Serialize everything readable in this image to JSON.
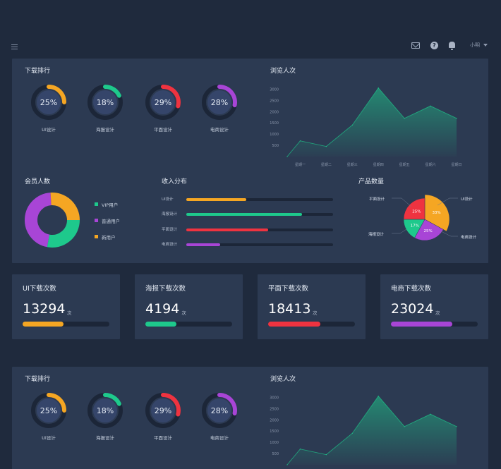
{
  "header": {
    "user_name": "小明"
  },
  "colors": {
    "yellow": "#f5a623",
    "green": "#1ec98c",
    "red": "#ef3340",
    "purple": "#a845d6",
    "track": "#1c2638"
  },
  "dashboard1": {
    "download_rank": {
      "title": "下载排行",
      "items": [
        {
          "label": "UI设计",
          "percent_text": "25%",
          "percent": 25,
          "color": "#f5a623"
        },
        {
          "label": "海报设计",
          "percent_text": "18%",
          "percent": 18,
          "color": "#1ec98c"
        },
        {
          "label": "平面设计",
          "percent_text": "29%",
          "percent": 29,
          "color": "#ef3340"
        },
        {
          "label": "电商设计",
          "percent_text": "28%",
          "percent": 28,
          "color": "#a845d6"
        }
      ]
    },
    "views": {
      "title": "浏览人次"
    },
    "members": {
      "title": "会员人数",
      "legend": [
        {
          "label": "VIP用户",
          "color": "#1ec98c"
        },
        {
          "label": "普通用户",
          "color": "#a845d6"
        },
        {
          "label": "新用户",
          "color": "#f5a623"
        }
      ]
    },
    "income": {
      "title": "收入分布",
      "rows": [
        {
          "label": "UI设计",
          "fraction": 0.41,
          "color": "#f5a623"
        },
        {
          "label": "海报设计",
          "fraction": 0.79,
          "color": "#1ec98c"
        },
        {
          "label": "平面设计",
          "fraction": 0.56,
          "color": "#ef3340"
        },
        {
          "label": "电商设计",
          "fraction": 0.23,
          "color": "#a845d6"
        }
      ]
    },
    "products": {
      "title": "产品数量",
      "labels": {
        "poster": "海报设计",
        "print": "平面设计",
        "ui": "UI设计",
        "ecommerce": "电商设计"
      }
    }
  },
  "stats": [
    {
      "title": "UI下载次数",
      "value": "13294",
      "unit": "次",
      "fraction": 0.47,
      "color": "#f5a623"
    },
    {
      "title": "海报下载次数",
      "value": "4194",
      "unit": "次",
      "fraction": 0.36,
      "color": "#1ec98c"
    },
    {
      "title": "平面下载次数",
      "value": "18413",
      "unit": "次",
      "fraction": 0.6,
      "color": "#ef3340"
    },
    {
      "title": "电商下载次数",
      "value": "23024",
      "unit": "次",
      "fraction": 0.71,
      "color": "#a845d6"
    }
  ],
  "dashboard2": {
    "download_rank": {
      "title": "下载排行",
      "items": [
        {
          "label": "UI设计",
          "percent_text": "25%",
          "percent": 25,
          "color": "#f5a623"
        },
        {
          "label": "海报设计",
          "percent_text": "18%",
          "percent": 18,
          "color": "#1ec98c"
        },
        {
          "label": "平面设计",
          "percent_text": "29%",
          "percent": 29,
          "color": "#ef3340"
        },
        {
          "label": "电商设计",
          "percent_text": "28%",
          "percent": 28,
          "color": "#a845d6"
        }
      ]
    },
    "views": {
      "title": "浏览人次"
    }
  },
  "chart_data": [
    {
      "type": "area",
      "title": "浏览人次",
      "categories": [
        "星期一",
        "星期二",
        "星期三",
        "星期四",
        "星期五",
        "星期六",
        "星期日"
      ],
      "x": [
        0,
        0.5,
        1.5,
        2.5,
        3.5,
        4.5,
        5.5,
        6.5
      ],
      "values": [
        0,
        700,
        450,
        1400,
        3050,
        1700,
        2250,
        1700
      ],
      "yticks": [
        500,
        1000,
        1500,
        2000,
        2500,
        3000
      ],
      "ylim": [
        0,
        3200
      ],
      "color": "#1ec98c"
    },
    {
      "type": "pie",
      "title": "会员人数",
      "donut": true,
      "slices": [
        {
          "label": "VIP用户",
          "value": 28,
          "color": "#1ec98c"
        },
        {
          "label": "普通用户",
          "value": 46,
          "color": "#a845d6"
        },
        {
          "label": "新用户",
          "value": 26,
          "color": "#f5a623"
        }
      ]
    },
    {
      "type": "pie",
      "title": "产品数量",
      "slices": [
        {
          "label": "UI设计",
          "value": 33,
          "text": "33%",
          "color": "#f5a623"
        },
        {
          "label": "电商设计",
          "value": 25,
          "text": "25%",
          "color": "#a845d6"
        },
        {
          "label": "海报设计",
          "value": 17,
          "text": "17%",
          "color": "#1ec98c"
        },
        {
          "label": "平面设计",
          "value": 25,
          "text": "25%",
          "color": "#ef3340"
        }
      ]
    },
    {
      "type": "area",
      "title": "浏览人次",
      "x": [
        0,
        0.5,
        1.5,
        2.5,
        3.5,
        4.5,
        5.5,
        6.5
      ],
      "values": [
        0,
        700,
        450,
        1400,
        3050,
        1700,
        2250,
        1700
      ],
      "yticks": [
        500,
        1000,
        1500,
        2000,
        2500,
        3000
      ],
      "ylim": [
        0,
        3200
      ],
      "color": "#1ec98c"
    }
  ]
}
